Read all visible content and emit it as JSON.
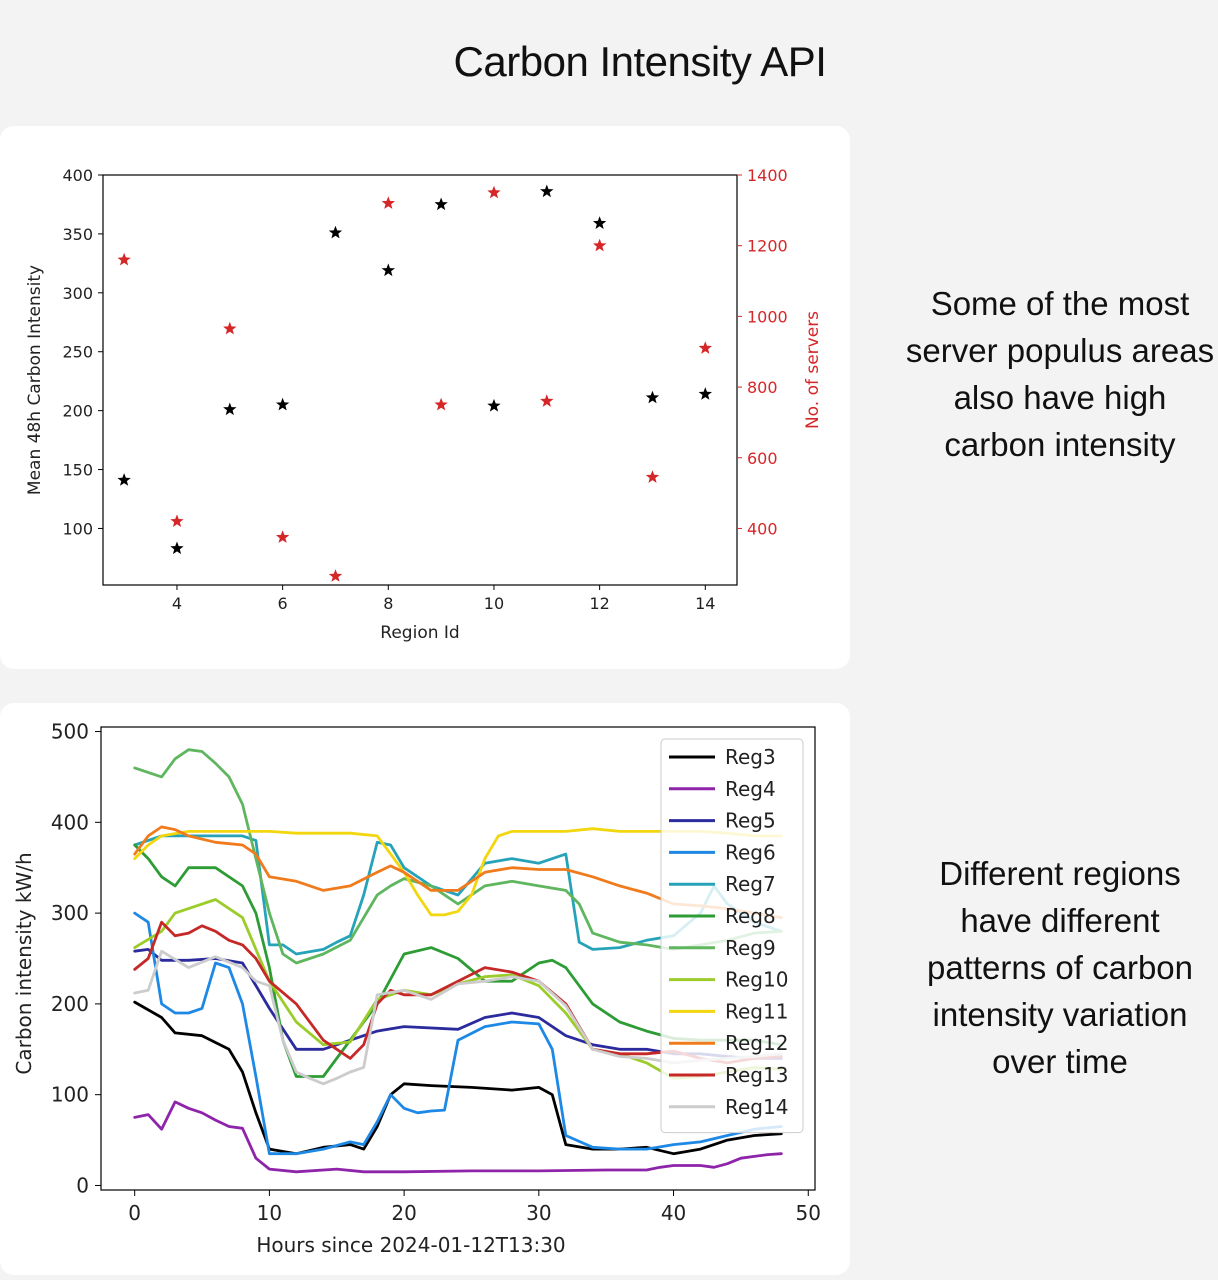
{
  "title": "Carbon Intensity API",
  "notes": [
    "Some of the most server populus areas also have high carbon intensity",
    "Different regions have different patterns of carbon intensity variation over time"
  ],
  "colors": {
    "background": "#f3f3f3",
    "card": "#ffffff",
    "intensity_marker": "#000000",
    "servers_marker": "#d62728"
  },
  "chart_data": [
    {
      "type": "scatter",
      "title": "",
      "xlabel": "Region Id",
      "ylabel": "Mean 48h Carbon Intensity",
      "y2label": "No. of servers",
      "xlim": [
        2.6,
        14.6
      ],
      "ylim": [
        52,
        400
      ],
      "y2lim": [
        240,
        1400
      ],
      "xticks": [
        4,
        6,
        8,
        10,
        12,
        14
      ],
      "yticks": [
        100,
        150,
        200,
        250,
        300,
        350,
        400
      ],
      "y2ticks": [
        400,
        600,
        800,
        1000,
        1200,
        1400
      ],
      "marker": "star",
      "series": [
        {
          "name": "Mean 48h Carbon Intensity",
          "axis": "left",
          "color": "#000000",
          "x": [
            3,
            4,
            5,
            6,
            7,
            8,
            9,
            10,
            11,
            12,
            13,
            14
          ],
          "y": [
            141,
            83,
            201,
            205,
            351,
            319,
            375,
            204,
            386,
            359,
            211,
            214
          ]
        },
        {
          "name": "No. of servers",
          "axis": "right",
          "color": "#d62728",
          "x": [
            3,
            4,
            5,
            6,
            7,
            8,
            9,
            10,
            11,
            12,
            13,
            14
          ],
          "y": [
            1160,
            420,
            965,
            375,
            265,
            1320,
            750,
            1350,
            760,
            1200,
            545,
            910
          ]
        }
      ]
    },
    {
      "type": "line",
      "title": "",
      "xlabel": "Hours since 2024-01-12T13:30",
      "ylabel": "Carbon intensity kW/h",
      "xlim": [
        -2.5,
        50.5
      ],
      "ylim": [
        -5,
        505
      ],
      "xticks": [
        0,
        10,
        20,
        30,
        40,
        50
      ],
      "yticks": [
        0,
        100,
        200,
        300,
        400,
        500
      ],
      "legend": "top-right",
      "series": [
        {
          "name": "Reg3",
          "color": "#000000",
          "x": [
            0,
            2,
            3,
            5,
            7,
            8,
            9,
            10,
            12,
            14,
            16,
            17,
            18,
            19,
            20,
            22,
            25,
            28,
            30,
            31,
            32,
            34,
            36,
            38,
            40,
            42,
            44,
            46,
            48
          ],
          "y": [
            202,
            185,
            168,
            165,
            150,
            125,
            80,
            40,
            35,
            42,
            45,
            40,
            65,
            100,
            112,
            110,
            108,
            105,
            108,
            100,
            45,
            40,
            40,
            42,
            35,
            40,
            50,
            55,
            57
          ]
        },
        {
          "name": "Reg4",
          "color": "#8e24aa",
          "x": [
            0,
            1,
            2,
            3,
            4,
            5,
            6,
            7,
            8,
            9,
            10,
            12,
            15,
            17,
            20,
            25,
            30,
            35,
            38,
            39,
            40,
            42,
            43,
            44,
            45,
            46,
            47,
            48
          ],
          "y": [
            75,
            78,
            62,
            92,
            85,
            80,
            72,
            65,
            63,
            30,
            18,
            15,
            18,
            15,
            15,
            16,
            16,
            17,
            17,
            20,
            22,
            22,
            20,
            24,
            30,
            32,
            34,
            35
          ]
        },
        {
          "name": "Reg5",
          "color": "#2b2b9e",
          "x": [
            0,
            1,
            2,
            4,
            6,
            8,
            10,
            12,
            14,
            16,
            18,
            20,
            24,
            26,
            28,
            30,
            32,
            34,
            36,
            38,
            40,
            42,
            44,
            46,
            48
          ],
          "y": [
            258,
            260,
            248,
            248,
            250,
            245,
            195,
            150,
            150,
            160,
            170,
            175,
            172,
            185,
            190,
            185,
            165,
            155,
            150,
            150,
            145,
            145,
            142,
            140,
            140
          ]
        },
        {
          "name": "Reg6",
          "color": "#1e88e5",
          "x": [
            0,
            1,
            2,
            3,
            4,
            5,
            6,
            7,
            8,
            9,
            10,
            12,
            14,
            16,
            17,
            18,
            19,
            20,
            21,
            22,
            23,
            24,
            26,
            28,
            30,
            31,
            32,
            34,
            36,
            38,
            40,
            42,
            44,
            46,
            48
          ],
          "y": [
            300,
            290,
            200,
            190,
            190,
            195,
            245,
            240,
            200,
            120,
            35,
            35,
            40,
            48,
            45,
            70,
            100,
            85,
            80,
            82,
            83,
            160,
            175,
            180,
            178,
            150,
            55,
            42,
            40,
            40,
            45,
            48,
            55,
            62,
            65
          ]
        },
        {
          "name": "Reg7",
          "color": "#26a3b8",
          "x": [
            0,
            2,
            4,
            6,
            8,
            9,
            10,
            11,
            12,
            14,
            15,
            16,
            17,
            18,
            19,
            20,
            22,
            24,
            26,
            28,
            30,
            32,
            33,
            34,
            36,
            38,
            40,
            42,
            43,
            44,
            46,
            48
          ],
          "y": [
            375,
            385,
            385,
            385,
            385,
            380,
            265,
            265,
            255,
            260,
            268,
            275,
            320,
            378,
            375,
            350,
            330,
            320,
            355,
            360,
            355,
            365,
            268,
            260,
            262,
            270,
            275,
            300,
            330,
            310,
            290,
            280
          ]
        },
        {
          "name": "Reg8",
          "color": "#2e9c35",
          "x": [
            0,
            1,
            2,
            3,
            4,
            6,
            8,
            9,
            10,
            11,
            12,
            14,
            16,
            18,
            20,
            22,
            24,
            26,
            28,
            30,
            31,
            32,
            34,
            36,
            38,
            40,
            42,
            44,
            46,
            48
          ],
          "y": [
            375,
            360,
            340,
            330,
            350,
            350,
            330,
            300,
            240,
            160,
            120,
            120,
            160,
            200,
            255,
            262,
            250,
            225,
            225,
            245,
            248,
            240,
            200,
            180,
            170,
            162,
            160,
            160,
            160,
            155
          ]
        },
        {
          "name": "Reg9",
          "color": "#5fb65f",
          "x": [
            0,
            1,
            2,
            3,
            4,
            5,
            6,
            7,
            8,
            9,
            10,
            11,
            12,
            13,
            14,
            16,
            18,
            19,
            20,
            22,
            24,
            26,
            28,
            30,
            32,
            33,
            34,
            36,
            38,
            40,
            42,
            44,
            46,
            48
          ],
          "y": [
            460,
            455,
            450,
            470,
            480,
            478,
            465,
            450,
            420,
            360,
            300,
            255,
            245,
            250,
            255,
            270,
            320,
            330,
            338,
            330,
            310,
            330,
            335,
            330,
            325,
            310,
            278,
            268,
            265,
            260,
            265,
            270,
            278,
            280
          ]
        },
        {
          "name": "Reg10",
          "color": "#9ccc2a",
          "x": [
            0,
            2,
            3,
            4,
            6,
            8,
            10,
            12,
            14,
            16,
            18,
            20,
            22,
            24,
            26,
            28,
            30,
            32,
            34,
            36,
            38,
            40,
            42,
            44,
            46,
            48
          ],
          "y": [
            262,
            280,
            300,
            305,
            315,
            295,
            225,
            180,
            155,
            158,
            205,
            215,
            210,
            222,
            230,
            232,
            220,
            190,
            150,
            145,
            135,
            118,
            120,
            125,
            130,
            128
          ]
        },
        {
          "name": "Reg11",
          "color": "#f2d60f",
          "x": [
            0,
            1,
            2,
            4,
            6,
            8,
            10,
            12,
            14,
            16,
            18,
            20,
            21,
            22,
            23,
            24,
            25,
            26,
            27,
            28,
            30,
            32,
            34,
            36,
            38,
            40,
            42,
            44,
            46,
            48
          ],
          "y": [
            360,
            375,
            385,
            390,
            390,
            390,
            390,
            388,
            388,
            388,
            385,
            345,
            320,
            298,
            298,
            302,
            320,
            360,
            385,
            390,
            390,
            390,
            393,
            390,
            390,
            390,
            390,
            388,
            385,
            385
          ]
        },
        {
          "name": "Reg12",
          "color": "#f07b1c",
          "x": [
            0,
            1,
            2,
            3,
            4,
            6,
            8,
            9,
            10,
            12,
            14,
            16,
            18,
            19,
            20,
            22,
            24,
            26,
            28,
            30,
            32,
            34,
            36,
            38,
            40,
            42,
            44,
            46,
            48
          ],
          "y": [
            365,
            385,
            395,
            392,
            385,
            378,
            375,
            365,
            340,
            335,
            325,
            330,
            345,
            352,
            345,
            325,
            325,
            345,
            350,
            348,
            348,
            340,
            330,
            322,
            310,
            308,
            305,
            300,
            295
          ]
        },
        {
          "name": "Reg13",
          "color": "#c62828",
          "x": [
            0,
            1,
            2,
            3,
            4,
            5,
            6,
            7,
            8,
            9,
            10,
            12,
            14,
            15,
            16,
            17,
            18,
            19,
            20,
            22,
            24,
            26,
            28,
            30,
            32,
            34,
            36,
            38,
            40,
            42,
            44,
            46,
            48
          ],
          "y": [
            238,
            250,
            290,
            275,
            278,
            286,
            280,
            270,
            265,
            250,
            225,
            200,
            160,
            150,
            140,
            155,
            200,
            215,
            210,
            210,
            225,
            240,
            235,
            225,
            200,
            150,
            145,
            145,
            148,
            140,
            135,
            140,
            142
          ]
        },
        {
          "name": "Reg14",
          "color": "#cccccc",
          "x": [
            0,
            1,
            2,
            4,
            6,
            8,
            9,
            10,
            11,
            12,
            13,
            14,
            15,
            16,
            17,
            18,
            20,
            22,
            24,
            26,
            28,
            30,
            32,
            34,
            36,
            38,
            40,
            42,
            44,
            46,
            48
          ],
          "y": [
            212,
            215,
            258,
            240,
            252,
            240,
            225,
            220,
            160,
            125,
            118,
            112,
            118,
            125,
            130,
            210,
            215,
            205,
            222,
            225,
            230,
            225,
            198,
            150,
            142,
            140,
            135,
            138,
            140,
            142,
            145
          ]
        }
      ]
    }
  ]
}
